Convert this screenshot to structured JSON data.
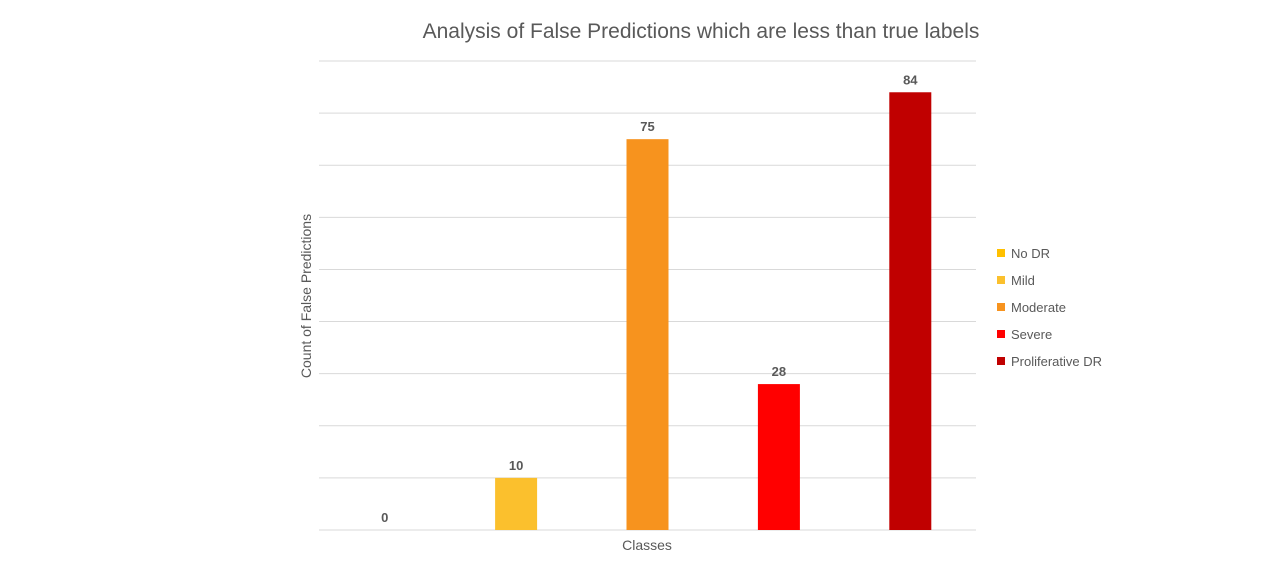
{
  "chart_data": {
    "type": "bar",
    "title": "Analysis of False Predictions which are less than true labels",
    "xlabel": "Classes",
    "ylabel": "Count of False Predictions",
    "categories": [
      "No DR",
      "Mild",
      "Moderate",
      "Severe",
      "Proliferative DR"
    ],
    "values": [
      0,
      10,
      75,
      28,
      84
    ],
    "colors": [
      "#FFC000",
      "#FBC02D",
      "#F7931E",
      "#FF0000",
      "#C00000"
    ],
    "ylim": [
      0,
      90
    ],
    "grid": true,
    "legend_placement": "right",
    "data_labels": true,
    "x_tick_labels_shown": false,
    "y_tick_labels_shown": false
  }
}
